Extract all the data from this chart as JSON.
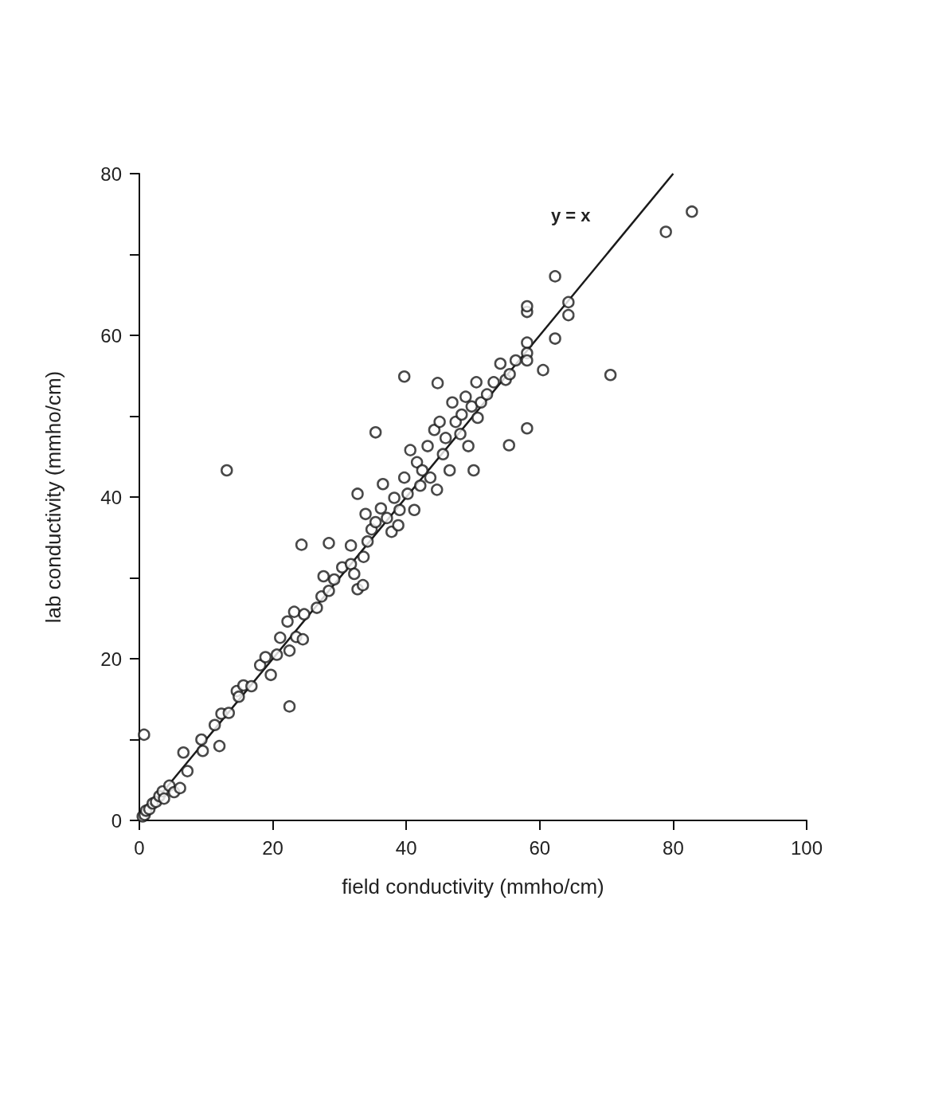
{
  "chart_data": {
    "type": "scatter",
    "xlabel": "field conductivity (mmho/cm)",
    "ylabel": "lab conductivity (mmho/cm)",
    "xlim": [
      0,
      100
    ],
    "ylim": [
      0,
      80
    ],
    "xticks": [
      0,
      20,
      40,
      60,
      80,
      100
    ],
    "yticks": [
      0,
      {
        "value": 10,
        "label": null
      },
      20,
      {
        "value": 30,
        "label": null
      },
      40,
      {
        "value": 50,
        "label": null
      },
      60,
      {
        "value": 70,
        "label": null
      },
      80
    ],
    "grid": false,
    "marker": "circle",
    "annotations": [
      "y = x"
    ],
    "series": [
      {
        "color": "#1a1a1a",
        "x": [
          0.5,
          0.8,
          1,
          1.5,
          2,
          2.5,
          3,
          3.5,
          3.7,
          4.5,
          5.2,
          6.1,
          7.2,
          6.6,
          9.5,
          9.3,
          11.3,
          12.3,
          13.4,
          14.6,
          15.6,
          14.9,
          16.8,
          18.1,
          18.9,
          19.7,
          20.6,
          21.1,
          22.2,
          23.2,
          22.5,
          23.5,
          24.5,
          24.7,
          26.6,
          27.3,
          27.6,
          28.4,
          29.2,
          30.4,
          31.7,
          31.7,
          32.2,
          32.7,
          33.5,
          33.6,
          33.9,
          34.2,
          34.8,
          35.4,
          36.2,
          36.5,
          37.1,
          37.8,
          38.2,
          38.8,
          39,
          39.7,
          40.2,
          40.6,
          41.2,
          41.6,
          42.1,
          42.4,
          43.2,
          43.6,
          44.2,
          44.6,
          45,
          45.5,
          45.9,
          46.5,
          46.9,
          47.4,
          48.1,
          48.3,
          48.9,
          49.3,
          49.8,
          50.5,
          50.7,
          51.2,
          52.1,
          53.1,
          54.1,
          54.9,
          55.5,
          56.4,
          0.7,
          13.1,
          35.4,
          39.7,
          44.7,
          24.3,
          28.4,
          22.5,
          12,
          32.7,
          50.1,
          55.4,
          58.1,
          70.6,
          82.8,
          78.9,
          62.3,
          64.3,
          64.3,
          58.1,
          58.1,
          62.3,
          58.1,
          58.1,
          58.1,
          60.5
        ],
        "values": [
          0.5,
          0.7,
          1.2,
          1.4,
          2.1,
          2.3,
          3,
          3.6,
          2.7,
          4.3,
          3.5,
          4,
          6.1,
          8.4,
          8.6,
          10,
          11.8,
          13.2,
          13.3,
          16,
          16.7,
          15.3,
          16.6,
          19.2,
          20.2,
          18,
          20.5,
          22.6,
          24.6,
          25.8,
          21,
          22.7,
          22.4,
          25.5,
          26.3,
          27.7,
          30.2,
          28.4,
          29.8,
          31.3,
          31.7,
          34,
          30.5,
          28.6,
          29.1,
          32.6,
          37.9,
          34.5,
          36,
          36.9,
          38.6,
          41.6,
          37.4,
          35.7,
          39.9,
          36.5,
          38.4,
          42.4,
          40.4,
          45.8,
          38.4,
          44.3,
          41.4,
          43.3,
          46.3,
          42.4,
          48.3,
          40.9,
          49.3,
          45.3,
          47.3,
          43.3,
          51.7,
          49.3,
          47.8,
          50.2,
          52.4,
          46.3,
          51.2,
          54.2,
          49.8,
          51.7,
          52.7,
          54.2,
          56.5,
          54.5,
          55.2,
          56.9,
          10.6,
          43.3,
          48,
          54.9,
          54.1,
          34.1,
          34.3,
          14.1,
          9.2,
          40.4,
          43.3,
          46.4,
          48.5,
          55.1,
          75.3,
          72.8,
          67.3,
          64.1,
          62.5,
          62.9,
          63.6,
          59.6,
          59.1,
          57.8,
          56.9,
          55.7
        ]
      },
      {
        "type": "line",
        "color": "#1a1a1a",
        "marker": "none",
        "x": [
          0,
          80
        ],
        "values": [
          0,
          80
        ]
      }
    ]
  }
}
